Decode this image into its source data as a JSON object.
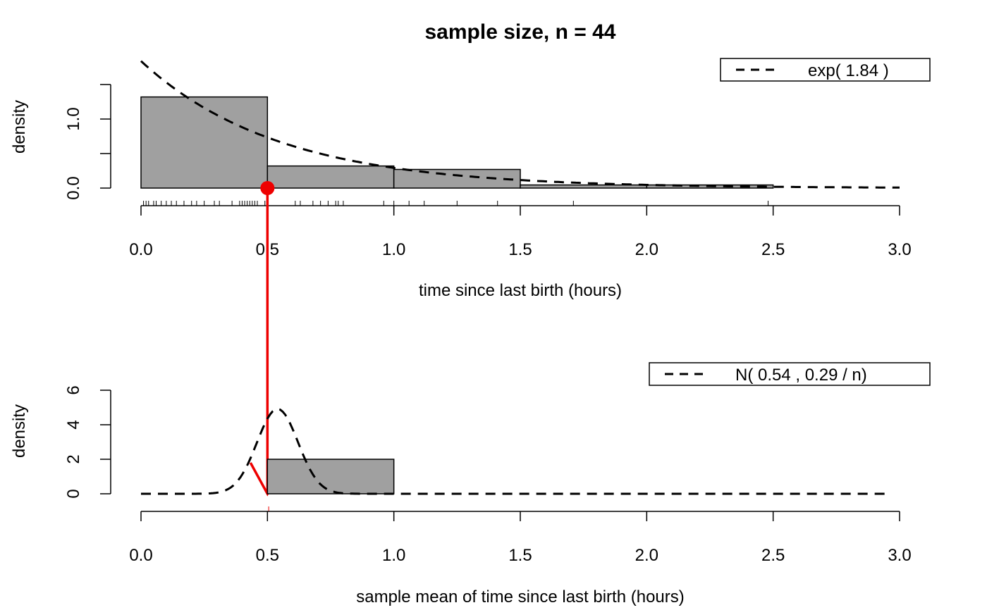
{
  "title": "sample size, n =  44",
  "colors": {
    "bar_fill": "#a0a0a0",
    "arrow": "#ee0000",
    "curve": "#000000"
  },
  "chart_data": [
    {
      "type": "bar",
      "panel": "top",
      "title": "sample size, n =  44",
      "xlabel": "time since last birth (hours)",
      "ylabel": "density",
      "xlim": [
        0,
        3
      ],
      "ylim": [
        0,
        1.5
      ],
      "x_ticks": [
        "0.0",
        "0.5",
        "1.0",
        "1.5",
        "2.0",
        "2.5",
        "3.0"
      ],
      "y_ticks": [
        "0.0",
        "1.0"
      ],
      "y_minor_ticks": [
        0.5,
        1.5
      ],
      "bins": [
        {
          "x0": 0.0,
          "x1": 0.5,
          "density": 1.32
        },
        {
          "x0": 0.5,
          "x1": 1.0,
          "density": 0.32
        },
        {
          "x0": 1.0,
          "x1": 1.5,
          "density": 0.27
        },
        {
          "x0": 1.5,
          "x1": 2.0,
          "density": 0.045
        },
        {
          "x0": 2.0,
          "x1": 2.5,
          "density": 0.045
        }
      ],
      "curve": {
        "name": "exp( 1.84 )",
        "dist": "exp",
        "rate": 1.84,
        "x_range": [
          0,
          3
        ]
      },
      "rug": [
        0.01,
        0.02,
        0.03,
        0.05,
        0.06,
        0.08,
        0.1,
        0.12,
        0.14,
        0.17,
        0.2,
        0.22,
        0.25,
        0.29,
        0.31,
        0.36,
        0.39,
        0.4,
        0.41,
        0.42,
        0.43,
        0.44,
        0.45,
        0.46,
        0.49,
        0.5,
        0.61,
        0.63,
        0.68,
        0.71,
        0.74,
        0.77,
        0.78,
        0.8,
        0.96,
        1.0,
        1.06,
        1.12,
        1.25,
        1.41,
        1.71,
        2.48
      ],
      "marker": {
        "x": 0.5,
        "y": 0
      }
    },
    {
      "type": "bar",
      "panel": "bottom",
      "xlabel": "sample mean of time since last birth (hours)",
      "ylabel": "density",
      "xlim": [
        0,
        3
      ],
      "ylim": [
        0,
        6
      ],
      "x_ticks": [
        "0.0",
        "0.5",
        "1.0",
        "1.5",
        "2.0",
        "2.5",
        "3.0"
      ],
      "y_ticks": [
        "0",
        "2",
        "4",
        "6"
      ],
      "bins": [
        {
          "x0": 0.5,
          "x1": 1.0,
          "density": 2.0
        }
      ],
      "curve": {
        "name": "N( 0.54 , 0.29 / n)",
        "dist": "normal",
        "mean": 0.54,
        "var": 0.29,
        "n": 44,
        "x_range": [
          0,
          2.95
        ]
      },
      "rug": [
        0.505
      ],
      "arrow": {
        "from_x": 0.5,
        "to_x": 0.5
      }
    }
  ]
}
